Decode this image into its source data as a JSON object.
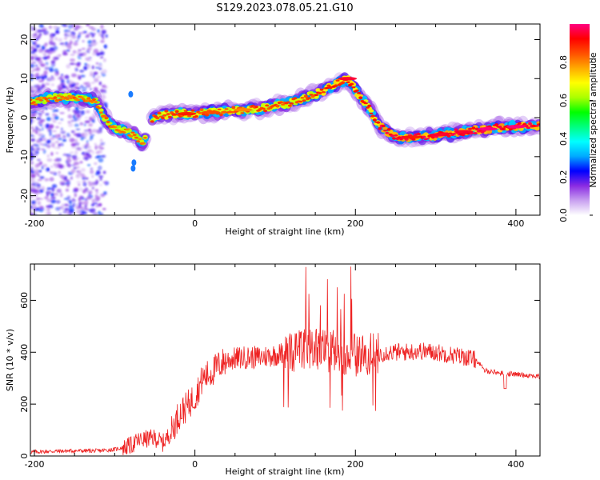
{
  "figure": {
    "title": "S129.2023.078.05.21.G10"
  },
  "chart_data": [
    {
      "type": "heatmap",
      "xlabel": "Height of straight line (km)",
      "ylabel": "Frequency (Hz)",
      "xlim": [
        -205,
        430
      ],
      "ylim": [
        -25,
        24
      ],
      "xticks": [
        "-200",
        "0",
        "200",
        "400"
      ],
      "yticks": [
        "-20",
        "-10",
        "0",
        "10",
        "20"
      ],
      "colorbar": {
        "label": "Normalized spectral amplitude",
        "range": [
          0,
          1
        ],
        "ticks": [
          "0.0",
          "0.2",
          "0.4",
          "0.6",
          "0.8"
        ],
        "colors": [
          "#ffffff",
          "#c8a0f0",
          "#8a2be2",
          "#0000ff",
          "#00aaff",
          "#00ffff",
          "#00ff80",
          "#00ff00",
          "#aaff00",
          "#ffff00",
          "#ffaa00",
          "#ff5000",
          "#ff0000",
          "#ff0080"
        ]
      },
      "ridge": {
        "x": [
          -200,
          -180,
          -160,
          -140,
          -125,
          -115,
          -105,
          -95,
          -85,
          -75,
          -65,
          -58,
          -50,
          -30,
          0,
          30,
          60,
          90,
          120,
          150,
          170,
          190,
          200,
          215,
          230,
          250,
          270,
          300,
          340,
          380,
          430
        ],
        "y": [
          4,
          5,
          5,
          5,
          4.5,
          1,
          -2,
          -3,
          -3.5,
          -4.5,
          -7,
          -1.5,
          0.5,
          1,
          1,
          1.5,
          2,
          2.5,
          4,
          6,
          8,
          10,
          7,
          3,
          -2,
          -5,
          -5,
          -4.5,
          -3.5,
          -2.5,
          -2
        ]
      }
    },
    {
      "type": "line",
      "xlabel": "Height of straight line (km)",
      "ylabel": "SNR (10 * v/v)",
      "xlim": [
        -205,
        430
      ],
      "ylim": [
        0,
        740
      ],
      "xticks": [
        "-200",
        "0",
        "200",
        "400"
      ],
      "yticks": [
        "0",
        "200",
        "400",
        "600"
      ],
      "color": "#ee2222",
      "x": [
        -205,
        -180,
        -150,
        -120,
        -100,
        -80,
        -70,
        -50,
        -40,
        -30,
        -20,
        -10,
        0,
        10,
        20,
        30,
        40,
        60,
        80,
        100,
        120,
        140,
        160,
        180,
        200,
        220,
        240,
        260,
        280,
        300,
        320,
        340,
        350,
        355,
        360,
        380,
        400,
        420,
        430
      ],
      "y": [
        15,
        18,
        20,
        20,
        25,
        40,
        60,
        70,
        50,
        90,
        160,
        190,
        230,
        300,
        320,
        350,
        370,
        380,
        380,
        390,
        400,
        410,
        410,
        400,
        390,
        390,
        400,
        400,
        405,
        400,
        390,
        380,
        370,
        355,
        330,
        320,
        315,
        310,
        305
      ]
    }
  ]
}
